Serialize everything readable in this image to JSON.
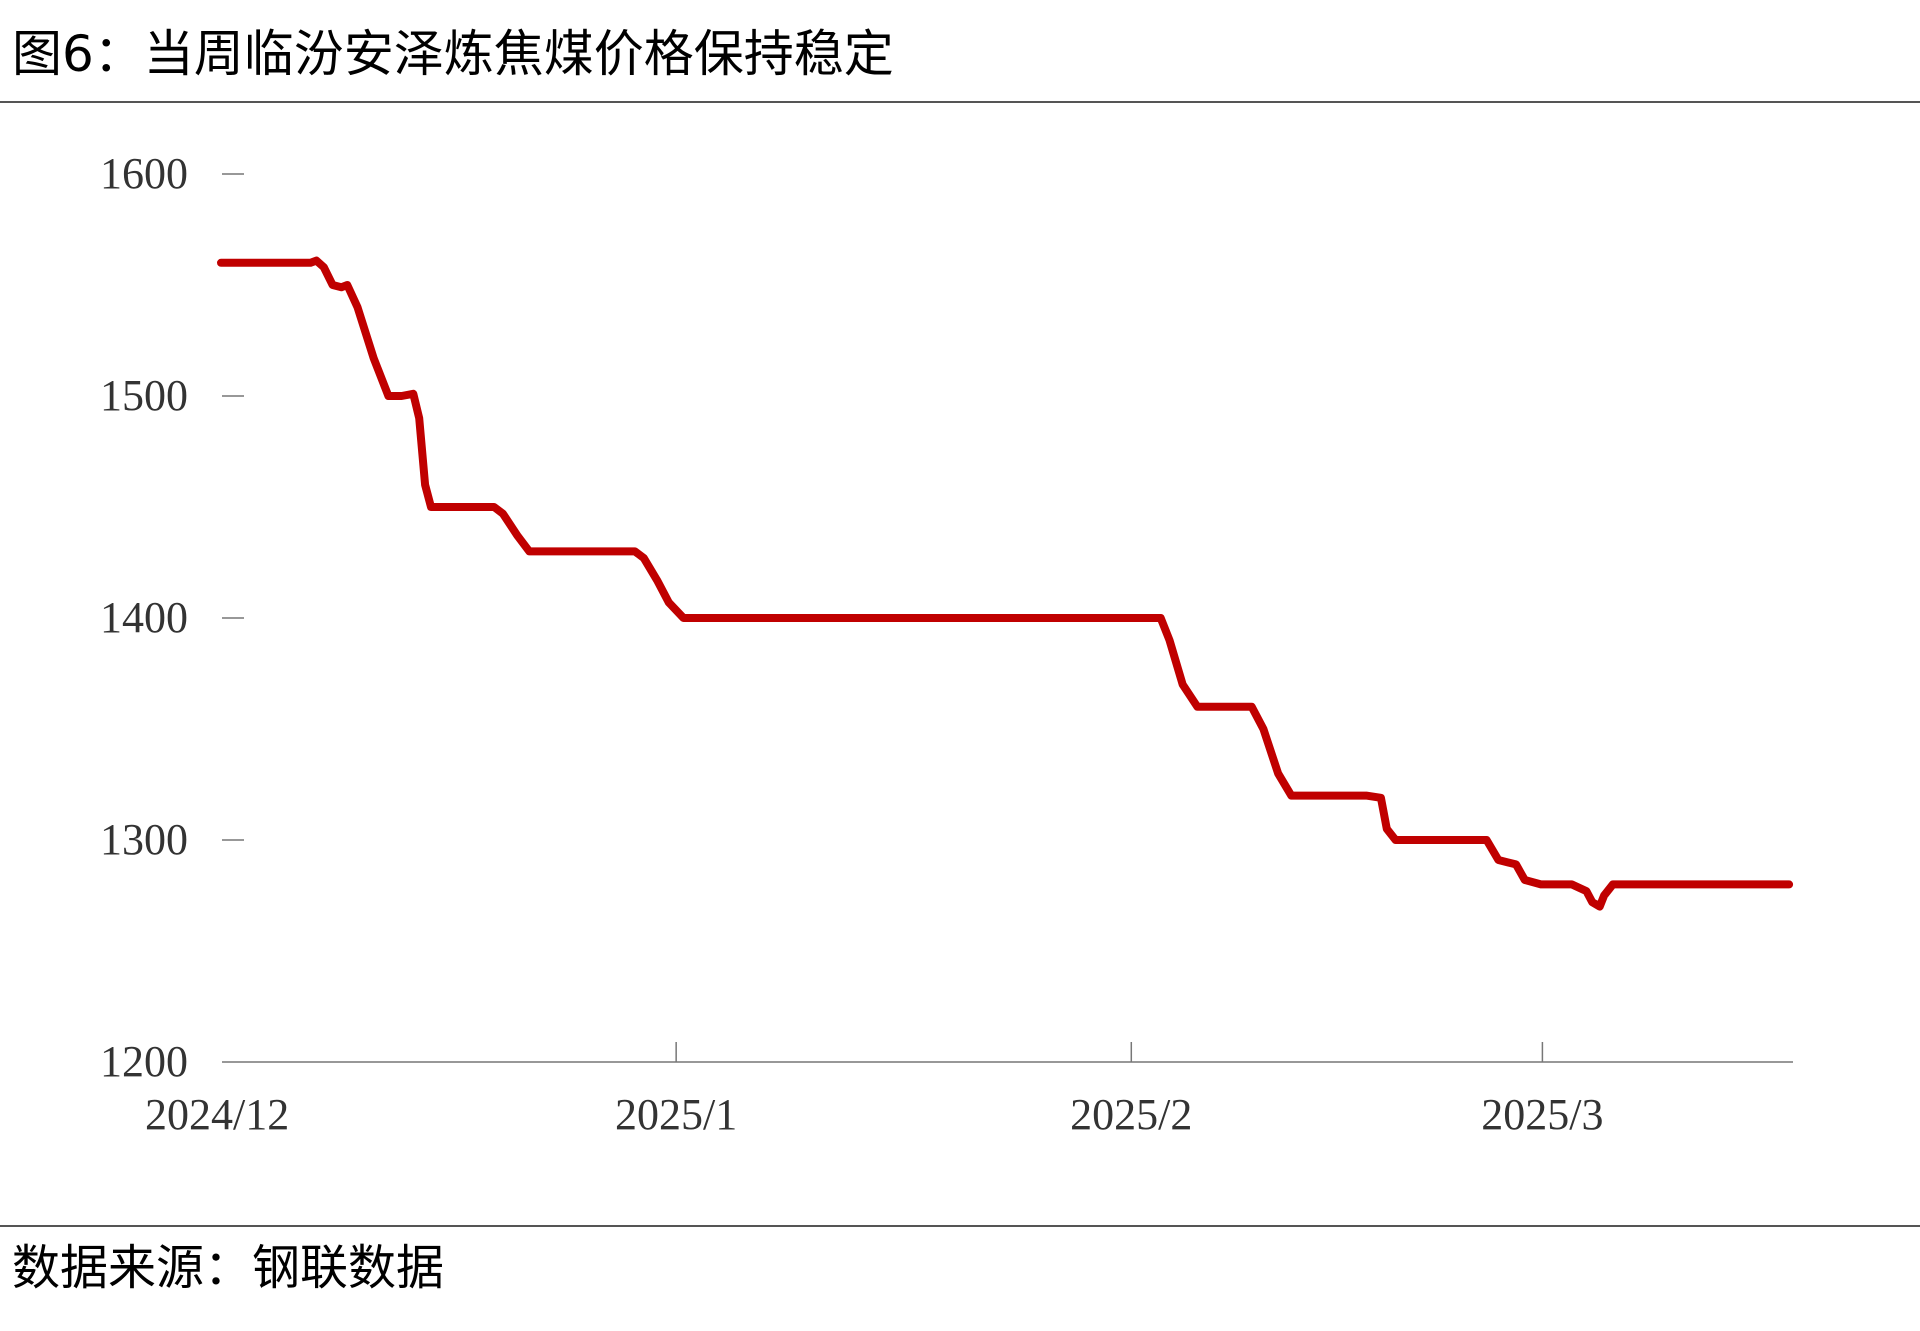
{
  "title": "图6：当周临汾安泽炼焦煤价格保持稳定",
  "source": "数据来源：钢联数据",
  "colors": {
    "line": "#c00000",
    "axis": "#777777",
    "text": "#333333"
  },
  "chart_data": {
    "type": "line",
    "title": "图6：当周临汾安泽炼焦煤价格保持稳定",
    "xlabel": "",
    "ylabel": "",
    "ylim": [
      1200,
      1600
    ],
    "yticks": [
      1200,
      1300,
      1400,
      1500,
      1600
    ],
    "x_tick_labels": [
      {
        "label": "2024/12",
        "day": 0
      },
      {
        "label": "2025/1",
        "day": 31
      },
      {
        "label": "2025/2",
        "day": 62
      },
      {
        "label": "2025/3",
        "day": 90
      }
    ],
    "x_range_days": [
      0,
      107
    ],
    "grid": false,
    "legend": "none",
    "series": [
      {
        "points": [
          [
            0,
            1560
          ],
          [
            6.1,
            1560
          ],
          [
            6.5,
            1561
          ],
          [
            7.0,
            1558
          ],
          [
            7.6,
            1550
          ],
          [
            8.2,
            1549
          ],
          [
            8.6,
            1550
          ],
          [
            9.3,
            1540
          ],
          [
            10.4,
            1517
          ],
          [
            11.4,
            1500
          ],
          [
            12.3,
            1500
          ],
          [
            13.1,
            1501
          ],
          [
            13.5,
            1490
          ],
          [
            13.9,
            1460
          ],
          [
            14.3,
            1450
          ],
          [
            15.2,
            1450
          ],
          [
            18.6,
            1450
          ],
          [
            19.2,
            1447
          ],
          [
            20.2,
            1437
          ],
          [
            21.0,
            1430
          ],
          [
            21.6,
            1430
          ],
          [
            28.2,
            1430
          ],
          [
            28.8,
            1427
          ],
          [
            29.7,
            1417
          ],
          [
            30.5,
            1407
          ],
          [
            31.5,
            1400
          ],
          [
            33.2,
            1400
          ],
          [
            51.8,
            1400
          ],
          [
            62.5,
            1400
          ],
          [
            64.0,
            1400
          ],
          [
            64.6,
            1390
          ],
          [
            65.5,
            1370
          ],
          [
            66.5,
            1360
          ],
          [
            67.4,
            1360
          ],
          [
            70.2,
            1360
          ],
          [
            71.0,
            1350
          ],
          [
            72.0,
            1330
          ],
          [
            72.9,
            1320
          ],
          [
            73.6,
            1320
          ],
          [
            78.0,
            1320
          ],
          [
            79.0,
            1319
          ],
          [
            79.4,
            1305
          ],
          [
            80.0,
            1300
          ],
          [
            82.0,
            1300
          ],
          [
            86.2,
            1300
          ],
          [
            87.0,
            1291
          ],
          [
            87.6,
            1290
          ],
          [
            88.2,
            1289
          ],
          [
            88.8,
            1282
          ],
          [
            89.9,
            1280
          ],
          [
            92.0,
            1280
          ],
          [
            93.0,
            1277
          ],
          [
            93.4,
            1272
          ],
          [
            93.9,
            1270
          ],
          [
            94.2,
            1275
          ],
          [
            94.8,
            1280
          ],
          [
            95.9,
            1280
          ],
          [
            106.8,
            1280
          ]
        ]
      }
    ]
  }
}
